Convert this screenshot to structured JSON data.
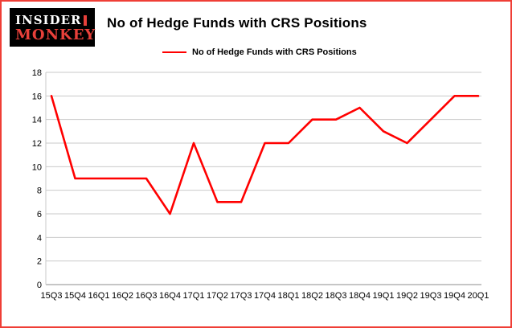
{
  "logo": {
    "line1": "INSIDER",
    "line2": "MONKEY",
    "bg_color": "#000000",
    "accent_color": "#e8403a"
  },
  "header": {
    "title": "No of Hedge Funds with CRS Positions"
  },
  "legend": {
    "label": "No of Hedge Funds with CRS Positions",
    "color": "#ff0000"
  },
  "chart_data": {
    "type": "line",
    "title": "No of Hedge Funds with CRS Positions",
    "series_name": "No of Hedge Funds with CRS Positions",
    "categories": [
      "15Q3",
      "15Q4",
      "16Q1",
      "16Q2",
      "16Q3",
      "16Q4",
      "17Q1",
      "17Q2",
      "17Q3",
      "17Q4",
      "18Q1",
      "18Q2",
      "18Q3",
      "18Q4",
      "19Q1",
      "19Q2",
      "19Q3",
      "19Q4",
      "20Q1"
    ],
    "values": [
      16,
      9,
      9,
      9,
      9,
      6,
      12,
      7,
      7,
      12,
      12,
      14,
      14,
      15,
      13,
      12,
      14,
      16,
      16
    ],
    "xlabel": "",
    "ylabel": "",
    "ylim": [
      0,
      18
    ],
    "ytick_step": 2,
    "grid": true,
    "legend_position": "top",
    "line_color": "#ff0000",
    "grid_color": "#c9c9c9",
    "axis_color": "#8c8c8c",
    "tick_label_color": "#000000"
  }
}
